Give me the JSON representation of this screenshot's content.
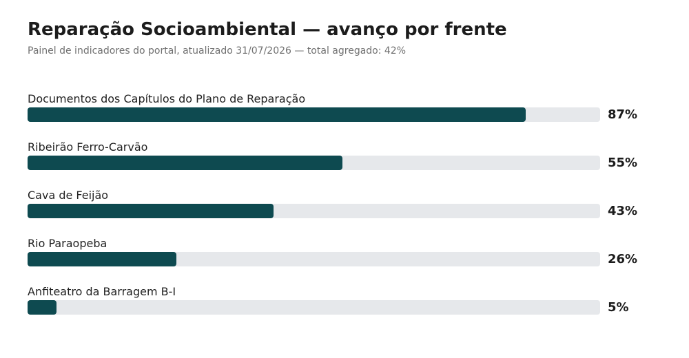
{
  "header": {
    "title": "Reparação Socioambiental — avanço por frente",
    "subtitle": "Painel de indicadores do portal, atualizado 31/07/2026 — total agregado: 42%"
  },
  "colors": {
    "fill": "#0e4a50",
    "track": "#e6e8eb"
  },
  "chart_data": {
    "type": "bar",
    "orientation": "horizontal",
    "title": "Reparação Socioambiental — avanço por frente",
    "subtitle": "Painel de indicadores do portal, atualizado 31/07/2026 — total agregado: 42%",
    "categories": [
      "Documentos dos Capítulos do Plano de Reparação",
      "Ribeirão Ferro-Carvão",
      "Cava de Feijão",
      "Rio Paraopeba",
      "Anfiteatro da Barragem B-I"
    ],
    "values": [
      87,
      55,
      43,
      26,
      5
    ],
    "value_labels": [
      "87%",
      "55%",
      "43%",
      "26%",
      "5%"
    ],
    "unit": "%",
    "xlim": [
      0,
      100
    ],
    "grid": false,
    "legend": "none"
  }
}
